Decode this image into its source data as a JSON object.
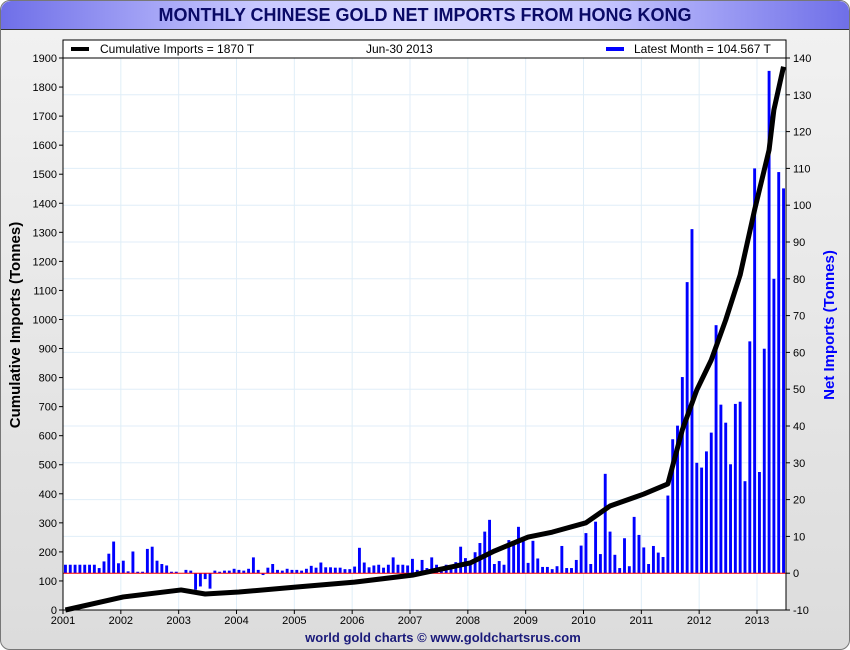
{
  "chart_data": {
    "type": "bar+line",
    "title": "MONTHLY CHINESE GOLD NET IMPORTS FROM HONG KONG",
    "legend": {
      "cumulative": "Cumulative Imports = 1870 T",
      "date": "Jun-30  2013",
      "latest": "Latest Month  = 104.567 T",
      "placement": "top"
    },
    "ylabel_left": "Cumulative Imports (Tonnes)",
    "ylabel_right": "Net Imports (Tonnes)",
    "footer": "world gold charts © www.goldchartsrus.com",
    "x_ticks": [
      "2001",
      "2002",
      "2003",
      "2004",
      "2005",
      "2006",
      "2007",
      "2008",
      "2009",
      "2010",
      "2011",
      "2012",
      "2013"
    ],
    "y_left_ticks": [
      "0",
      "100",
      "200",
      "300",
      "400",
      "500",
      "600",
      "700",
      "800",
      "900",
      "1000",
      "1100",
      "1200",
      "1300",
      "1400",
      "1500",
      "1600",
      "1700",
      "1800",
      "1900"
    ],
    "y_right_ticks": [
      "-10",
      "0",
      "10",
      "20",
      "30",
      "40",
      "50",
      "60",
      "70",
      "80",
      "90",
      "100",
      "110",
      "120",
      "130",
      "140"
    ],
    "ylim_left": [
      0,
      1900
    ],
    "ylim_right": [
      -10,
      140
    ],
    "start_month": "2001-01",
    "grid": true,
    "colors": {
      "bars": "#0000ff",
      "line": "#000000",
      "zero_line": "#ff0000",
      "grid": "#e0eef8",
      "title_text": "#0a0a66"
    },
    "monthly_net_imports": [
      2.3,
      2.3,
      2.3,
      2.3,
      2.3,
      2.3,
      2.3,
      1.4,
      3.2,
      5.3,
      8.6,
      2.7,
      3.4,
      0.5,
      5.9,
      0.4,
      0.4,
      6.6,
      7.2,
      3.4,
      2.5,
      2.1,
      0.4,
      0.4,
      0,
      0.9,
      0.7,
      -4.5,
      -3.6,
      -1.6,
      -4.2,
      0.7,
      0.4,
      0.7,
      0.7,
      1.2,
      0.9,
      0.7,
      1.2,
      4.3,
      0.9,
      -0.5,
      1.5,
      2.5,
      0.9,
      0.7,
      1.2,
      0.9,
      0.9,
      0.7,
      1.2,
      2.0,
      1.5,
      2.9,
      1.6,
      1.6,
      1.5,
      1.5,
      1.1,
      1.1,
      1.8,
      6.9,
      2.9,
      1.6,
      2.1,
      2.3,
      1.5,
      2.3,
      4.3,
      2.3,
      2.3,
      2.1,
      3.9,
      0.9,
      3.6,
      1.4,
      4.3,
      2.3,
      1.6,
      2.3,
      2.1,
      3.0,
      7.2,
      4.1,
      2.5,
      5.7,
      8.2,
      11.3,
      14.5,
      2.5,
      3.3,
      2.3,
      9.0,
      8.1,
      12.6,
      9.6,
      2.8,
      8.8,
      4.0,
      1.7,
      1.7,
      1.1,
      1.9,
      7.4,
      1.4,
      1.4,
      3.6,
      7.5,
      10.9,
      2.5,
      14.0,
      5.2,
      27.0,
      11.3,
      5.0,
      1.4,
      9.5,
      1.9,
      15.3,
      10.4,
      7.0,
      2.5,
      7.4,
      5.6,
      4.4,
      21.1,
      36.4,
      40.1,
      53.3,
      79.1,
      93.5,
      30.0,
      28.7,
      33.1,
      38.2,
      67.4,
      45.8,
      40.9,
      29.6,
      46.0,
      46.6,
      25.0,
      63.0,
      110.0,
      27.5,
      61.0,
      136.5,
      80.0,
      109.0,
      104.567
    ],
    "cumulative_points": [
      [
        "2001-01",
        0
      ],
      [
        "2002-01",
        45
      ],
      [
        "2003-01",
        69
      ],
      [
        "2003-06",
        55
      ],
      [
        "2004-01",
        62
      ],
      [
        "2005-01",
        79
      ],
      [
        "2006-01",
        96
      ],
      [
        "2007-01",
        120
      ],
      [
        "2008-01",
        162
      ],
      [
        "2008-06",
        203
      ],
      [
        "2009-01",
        251
      ],
      [
        "2009-06",
        268
      ],
      [
        "2010-01",
        300
      ],
      [
        "2010-06",
        358
      ],
      [
        "2011-01",
        399
      ],
      [
        "2011-06",
        434
      ],
      [
        "2011-09",
        620
      ],
      [
        "2011-12",
        757
      ],
      [
        "2012-03",
        860
      ],
      [
        "2012-06",
        998
      ],
      [
        "2012-09",
        1153
      ],
      [
        "2012-12",
        1377
      ],
      [
        "2013-01",
        1446
      ],
      [
        "2013-03",
        1583
      ],
      [
        "2013-04",
        1721
      ],
      [
        "2013-06",
        1870
      ]
    ]
  }
}
